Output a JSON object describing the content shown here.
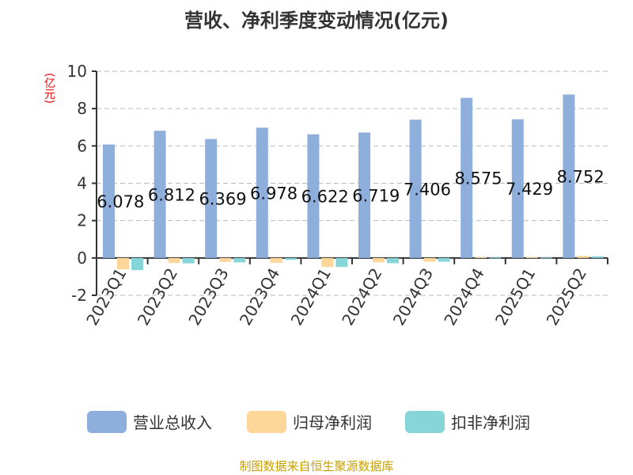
{
  "chart_data": {
    "type": "bar",
    "title": "营收、净利季度变动情况(亿元)",
    "ylabel": "(亿元)",
    "ylim": [
      -2,
      10
    ],
    "yticks": [
      -2,
      0,
      2,
      4,
      6,
      8,
      10
    ],
    "grid": true,
    "legend_position": "bottom",
    "categories": [
      "2023Q1",
      "2023Q2",
      "2023Q3",
      "2023Q4",
      "2024Q1",
      "2024Q2",
      "2024Q3",
      "2024Q4",
      "2025Q1",
      "2025Q2"
    ],
    "series": [
      {
        "name": "营业总收入",
        "color": "#8eaedc",
        "values": [
          6.078,
          6.812,
          6.369,
          6.978,
          6.622,
          6.719,
          7.406,
          8.575,
          7.429,
          8.752
        ],
        "labels": [
          "6.078",
          "6.812",
          "6.369",
          "6.978",
          "6.622",
          "6.719",
          "7.406",
          "8.575",
          "7.429",
          "8.752"
        ]
      },
      {
        "name": "归母净利润",
        "color": "#fdd699",
        "values": [
          -0.61,
          -0.27,
          -0.21,
          -0.26,
          -0.48,
          -0.24,
          -0.2,
          0.04,
          0.04,
          0.11
        ]
      },
      {
        "name": "扣非净利润",
        "color": "#85d5d9",
        "values": [
          -0.65,
          -0.29,
          -0.24,
          -0.1,
          -0.48,
          -0.28,
          -0.2,
          0.02,
          0.02,
          0.09
        ]
      }
    ]
  },
  "source": "制图数据来自恒生聚源数据库"
}
